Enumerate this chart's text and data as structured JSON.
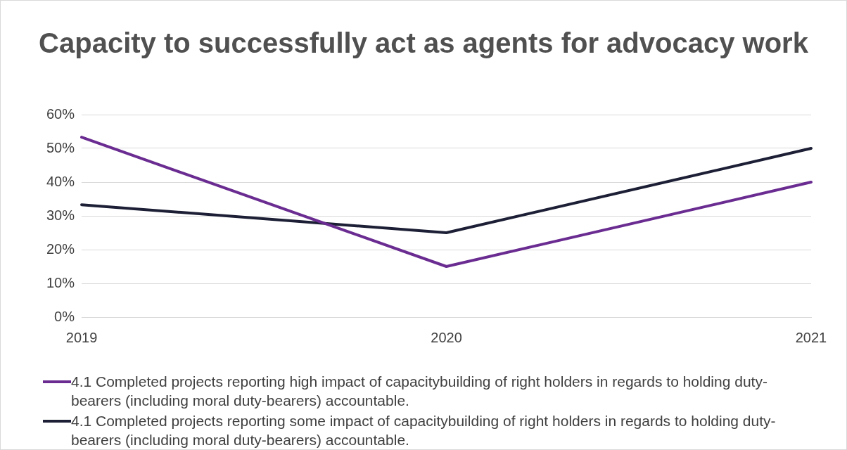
{
  "chart_data": {
    "type": "line",
    "title": "Capacity to successfully act as agents for advocacy work",
    "categories": [
      "2019",
      "2020",
      "2021"
    ],
    "series": [
      {
        "name": "4.1 Completed projects reporting high impact of capacitybuilding of right holders in regards to holding duty-bearers (including moral duty-bearers) accountable.",
        "color": "#6a2c91",
        "values": [
          53.3,
          15,
          40
        ]
      },
      {
        "name": "4.1 Completed projects reporting some impact of capacitybuilding of right holders in regards to holding duty-bearers (including moral duty-bearers) accountable.",
        "color": "#1c1f35",
        "values": [
          33.3,
          25,
          50
        ]
      }
    ],
    "ylim": [
      0,
      60
    ],
    "yticks": [
      {
        "value": 0,
        "label": "0%"
      },
      {
        "value": 10,
        "label": "10%"
      },
      {
        "value": 20,
        "label": "20%"
      },
      {
        "value": 30,
        "label": "30%"
      },
      {
        "value": 40,
        "label": "40%"
      },
      {
        "value": 50,
        "label": "50%"
      },
      {
        "value": 60,
        "label": "60%"
      }
    ],
    "grid": "y",
    "legend": "bottom",
    "marker": "none",
    "line_style": "solid"
  }
}
